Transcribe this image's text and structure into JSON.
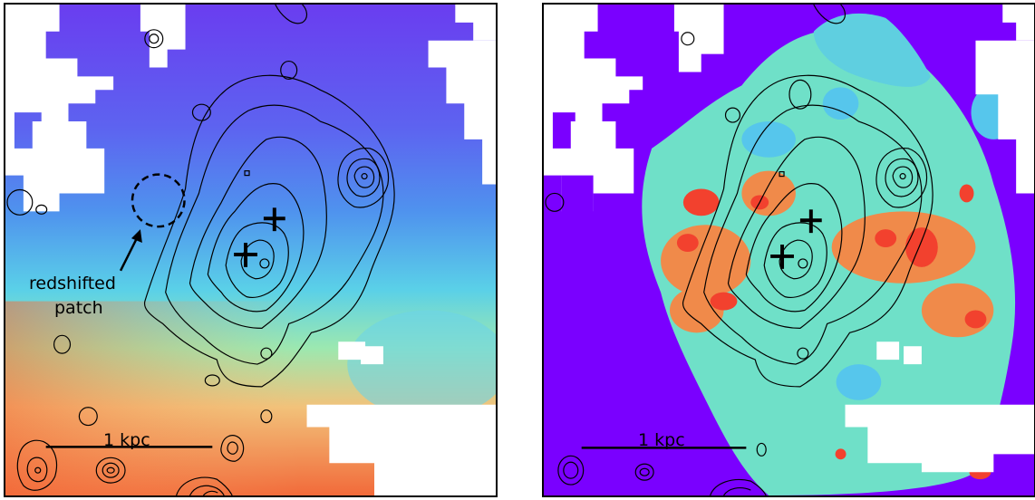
{
  "panels": [
    {
      "id": "left",
      "colormap": "rainbow (velocity)",
      "annotation_lines": [
        "redshifted",
        "patch"
      ],
      "scale_bar_label": "1 kpc",
      "markers": [
        "plus",
        "plus"
      ],
      "circle_style": "dashed"
    },
    {
      "id": "right",
      "colormap": "rainbow (dispersion)",
      "scale_bar_label": "1 kpc",
      "markers": [
        "plus",
        "plus"
      ]
    }
  ],
  "colors": {
    "violet": "#6b3cf0",
    "blue": "#4f7ff0",
    "cyan": "#5ad6e6",
    "green": "#8ef0a8",
    "orange": "#f5a05a",
    "red": "#f24a34",
    "purple_bg": "#7a00ff",
    "contour": "#000000"
  }
}
